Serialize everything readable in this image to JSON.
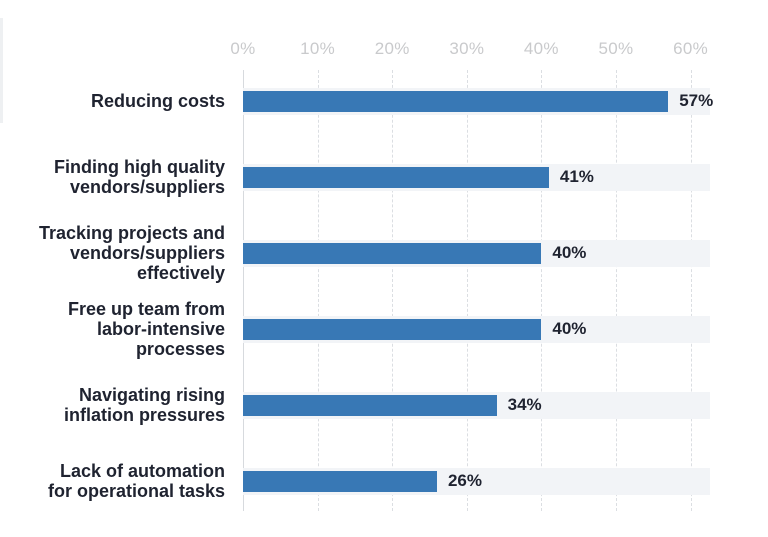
{
  "chart_data": {
    "type": "bar",
    "orientation": "horizontal",
    "title": "",
    "categories": [
      "Reducing costs",
      "Finding high quality\nvendors/suppliers",
      "Tracking projects and\nvendors/suppliers\neffectively",
      "Free up team from\nlabor-intensive\nprocesses",
      "Navigating rising\ninflation pressures",
      "Lack of automation\nfor operational tasks"
    ],
    "values": [
      57,
      41,
      40,
      40,
      34,
      26
    ],
    "value_labels": [
      "57%",
      "41%",
      "40%",
      "40%",
      "34%",
      "26%"
    ],
    "x_tick_labels": [
      "0%",
      "10%",
      "20%",
      "30%",
      "40%",
      "50%",
      "60%"
    ],
    "x_tick_values": [
      0,
      10,
      20,
      30,
      40,
      50,
      60
    ],
    "xlim": [
      0,
      62.6
    ],
    "grid": "vertical-dashed",
    "legend": "none",
    "colors": {
      "bar": "#3878b5",
      "track": "#f2f4f7",
      "gridline": "#dbdee2",
      "axis_line": "#d7dade",
      "category_text": "#1f2330",
      "value_text": "#1f2330",
      "tick_text": "#c9cacc",
      "background": "#ffffff"
    }
  }
}
